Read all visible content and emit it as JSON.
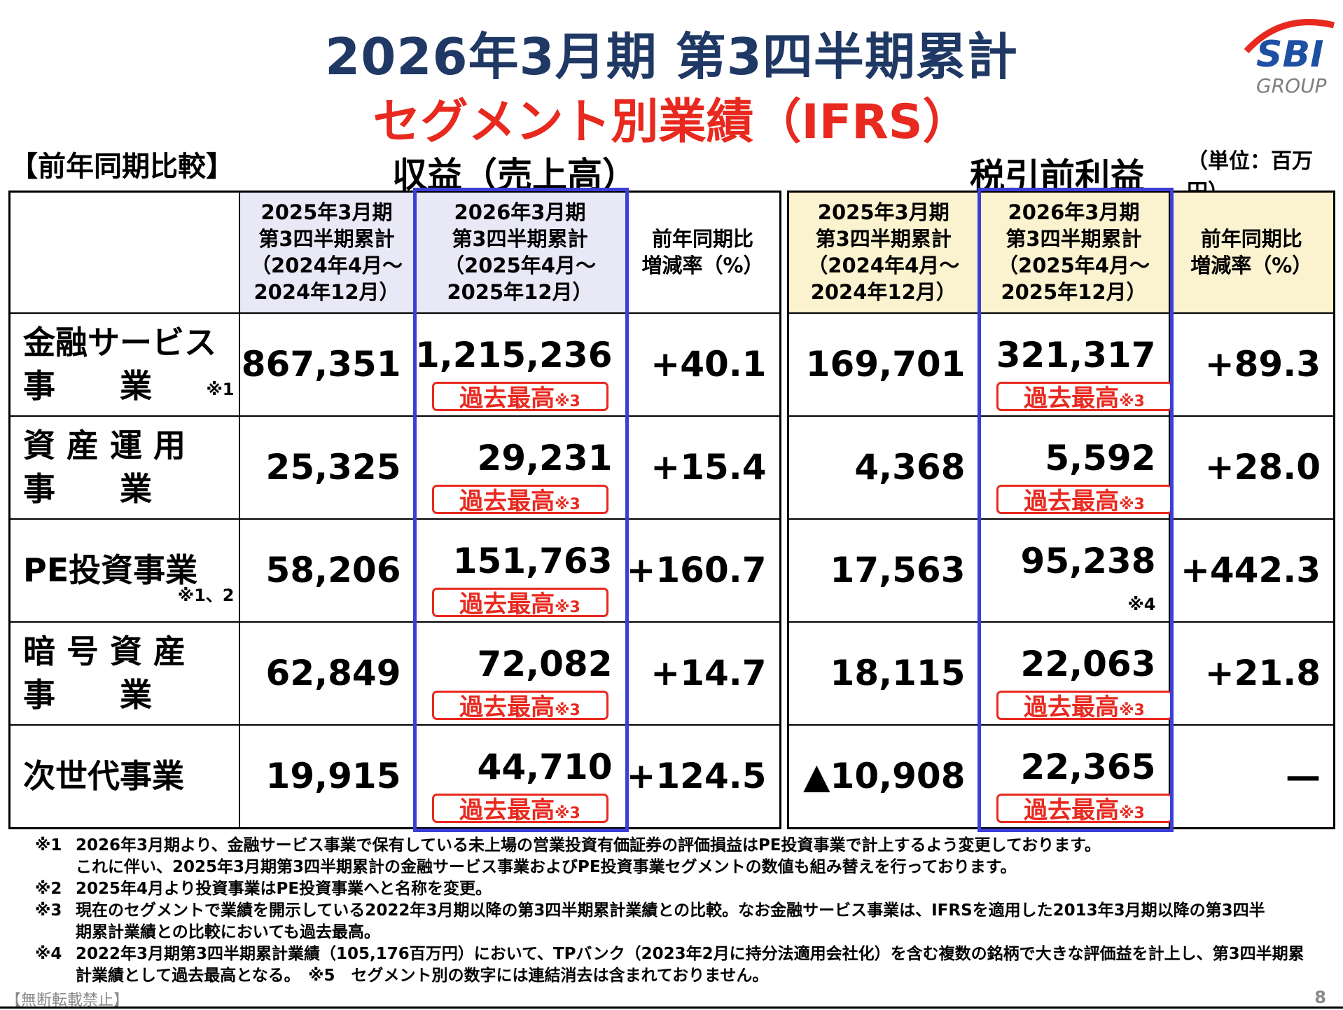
{
  "title": "2026年3月期 第3四半期累計",
  "subtitle": "セグメント別業績（IFRS）",
  "logo": {
    "text": "SBI",
    "group": "GROUP",
    "colors": {
      "blue": "#1e4fa3",
      "red": "#e8291f"
    }
  },
  "comparison_label": "【前年同期比較】",
  "revenue_title": "収益（売上高）",
  "profit_title": "税引前利益",
  "unit_label": "（単位：百万円）",
  "colors": {
    "title_navy": "#1f3864",
    "red": "#e8291f",
    "highlight_blue": "#3b3fd6",
    "header_lavender": "#e8e8f7",
    "header_yellow": "#fbf2cf"
  },
  "headers": {
    "prev": [
      "2025年3月期",
      "第3四半期累計",
      "（2024年4月～",
      "2024年12月）"
    ],
    "curr": [
      "2026年3月期",
      "第3四半期累計",
      "（2025年4月～",
      "2025年12月）"
    ],
    "yoy": [
      "前年同期比",
      "増減率（%）"
    ]
  },
  "badge_label": "過去最高",
  "badge_note": "※3",
  "rows": [
    {
      "segment_line1": "金融サービス",
      "segment_line2": "事　　業",
      "segment_note": "※1",
      "rev_prev": "867,351",
      "rev_curr": "1,215,236",
      "rev_yoy": "+40.1",
      "pft_prev": "169,701",
      "pft_curr": "321,317",
      "pft_yoy": "+89.3"
    },
    {
      "segment_line1": "資 産 運 用",
      "segment_line2": "事　　業",
      "segment_note": "",
      "rev_prev": "25,325",
      "rev_curr": "29,231",
      "rev_yoy": "+15.4",
      "pft_prev": "4,368",
      "pft_curr": "5,592",
      "pft_yoy": "+28.0"
    },
    {
      "segment_line1": "PE投資事業",
      "segment_line2": "",
      "segment_note": "※1、2",
      "rev_prev": "58,206",
      "rev_curr": "151,763",
      "rev_yoy": "+160.7",
      "pft_prev": "17,563",
      "pft_curr": "95,238",
      "pft_yoy": "+442.3",
      "pft_curr_note": "※4"
    },
    {
      "segment_line1": "暗 号 資 産",
      "segment_line2": "事　　業",
      "segment_note": "",
      "rev_prev": "62,849",
      "rev_curr": "72,082",
      "rev_yoy": "+14.7",
      "pft_prev": "18,115",
      "pft_curr": "22,063",
      "pft_yoy": "+21.8"
    },
    {
      "segment_line1": "次世代事業",
      "segment_line2": "",
      "segment_note": "",
      "rev_prev": "19,915",
      "rev_curr": "44,710",
      "rev_yoy": "+124.5",
      "pft_prev": "▲10,908",
      "pft_curr": "22,365",
      "pft_yoy": "—"
    }
  ],
  "notes": [
    {
      "mark": "※1",
      "lines": [
        "2026年3月期より、金融サービス事業で保有している未上場の営業投資有価証券の評価損益はPE投資事業で計上するよう変更しております。",
        "これに伴い、2025年3月期第3四半期累計の金融サービス事業およびPE投資事業セグメントの数値も組み替えを行っております。"
      ]
    },
    {
      "mark": "※2",
      "lines": [
        "2025年4月より投資事業はPE投資事業へと名称を変更。"
      ]
    },
    {
      "mark": "※3",
      "lines": [
        "現在のセグメントで業績を開示している2022年3月期以降の第3四半期累計業績との比較。なお金融サービス事業は、IFRSを適用した2013年3月期以降の第3四半",
        "期累計業績との比較においても過去最高。"
      ]
    },
    {
      "mark": "※4",
      "lines": [
        "2022年3月期第3四半期累計業績（105,176百万円）において、TPバンク（2023年2月に持分法適用会社化）を含む複数の銘柄で大きな評価益を計上し、第3四半期累",
        "計業績として過去最高となる。　※5　セグメント別の数字には連結消去は含まれておりません。"
      ]
    }
  ],
  "footer_left": "【無断転載禁止】",
  "page_number": "8"
}
